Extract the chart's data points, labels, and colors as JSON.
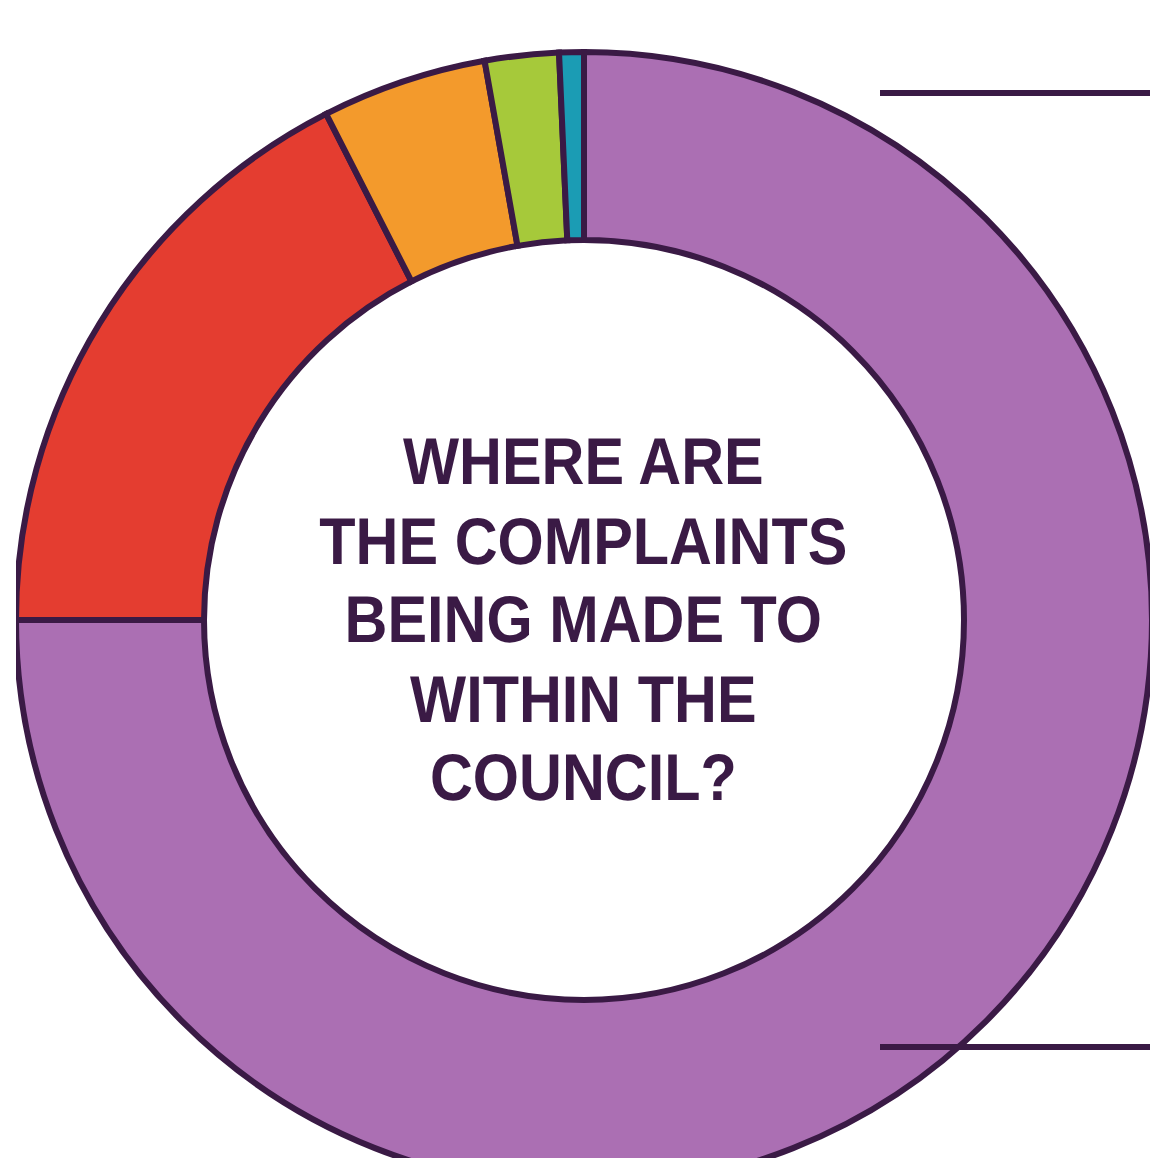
{
  "chart_data": {
    "type": "donut",
    "title": "WHERE ARE\nTHE COMPLAINTS\nBEING MADE TO\nWITHIN THE\nCOUNCIL?",
    "categories": [
      null,
      null,
      null,
      null,
      null
    ],
    "values": [
      75,
      17.5,
      4.7,
      2.1,
      0.7
    ],
    "colors": [
      "#ab6fb3",
      "#e43d30",
      "#f39a2c",
      "#a6c93a",
      "#1b9cb4"
    ]
  }
}
